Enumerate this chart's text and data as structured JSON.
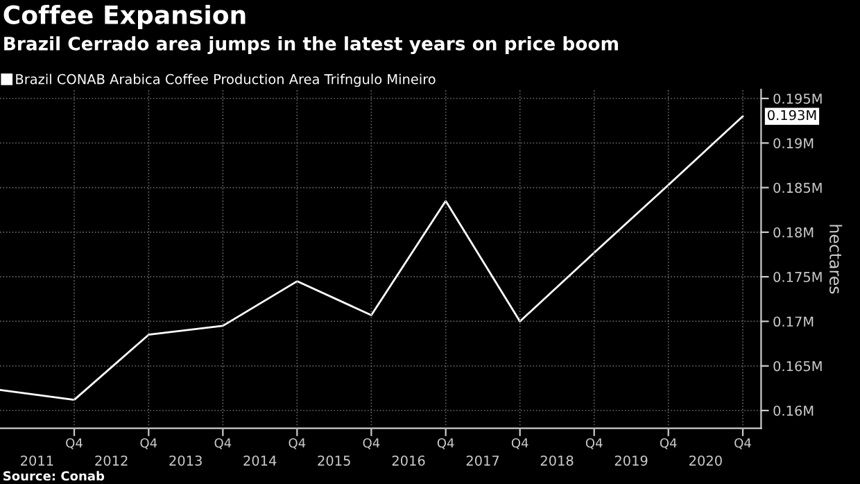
{
  "chart_data": {
    "type": "line",
    "title": "Coffee Expansion",
    "subtitle": "Brazil Cerrado area jumps in the latest years on price boom",
    "ylabel": "hectares",
    "x": [
      "2010-12-31",
      "2011-12-31",
      "2012-12-31",
      "2013-12-31",
      "2014-12-31",
      "2015-12-31",
      "2016-12-31",
      "2017-12-31",
      "2018-12-31",
      "2019-12-31",
      "2020-12-31"
    ],
    "series": [
      {
        "name": "Brazil CONAB Arabica Coffee Production Area Trifngulo Mineiro",
        "color": "#ffffff",
        "values": [
          0.1623,
          0.1612,
          0.1685,
          0.1695,
          0.1745,
          0.1707,
          0.1835,
          0.17,
          0.1777,
          0.1853,
          0.193
        ]
      }
    ],
    "xlim": [
      "2010-12-31",
      "2021-03-31"
    ],
    "xticks": [
      {
        "value": "2011-07-01",
        "label": "2011"
      },
      {
        "value": "2012-07-01",
        "label": "2012"
      },
      {
        "value": "2013-07-01",
        "label": "2013"
      },
      {
        "value": "2014-07-01",
        "label": "2014"
      },
      {
        "value": "2015-07-01",
        "label": "2015"
      },
      {
        "value": "2016-07-01",
        "label": "2016"
      },
      {
        "value": "2017-07-01",
        "label": "2017"
      },
      {
        "value": "2018-07-01",
        "label": "2018"
      },
      {
        "value": "2019-07-01",
        "label": "2019"
      },
      {
        "value": "2020-07-01",
        "label": "2020"
      }
    ],
    "x2lim": [
      "2010-12-31",
      "2021-03-31"
    ],
    "x2ticks": [
      {
        "value": "2011-12-31",
        "label": "Q4"
      },
      {
        "value": "2012-12-31",
        "label": "Q4"
      },
      {
        "value": "2013-12-31",
        "label": "Q4"
      },
      {
        "value": "2014-12-31",
        "label": "Q4"
      },
      {
        "value": "2015-12-31",
        "label": "Q4"
      },
      {
        "value": "2016-12-31",
        "label": "Q4"
      },
      {
        "value": "2017-12-31",
        "label": "Q4"
      },
      {
        "value": "2018-12-31",
        "label": "Q4"
      },
      {
        "value": "2019-12-31",
        "label": "Q4"
      },
      {
        "value": "2020-12-31",
        "label": "Q4"
      }
    ],
    "ylim": [
      0.158,
      0.196
    ],
    "yticks": [
      {
        "value": 0.16,
        "label": "0.16M"
      },
      {
        "value": 0.165,
        "label": "0.165M"
      },
      {
        "value": 0.17,
        "label": "0.17M"
      },
      {
        "value": 0.175,
        "label": "0.175M"
      },
      {
        "value": 0.18,
        "label": "0.18M"
      },
      {
        "value": 0.185,
        "label": "0.185M"
      },
      {
        "value": 0.19,
        "label": "0.19M"
      },
      {
        "value": 0.195,
        "label": "0.195M"
      }
    ],
    "annotations": [
      {
        "text": "0.193M",
        "y": 0.193
      },
      "Source: Conab"
    ],
    "grid": true,
    "legend": "top left",
    "marker": "none"
  }
}
